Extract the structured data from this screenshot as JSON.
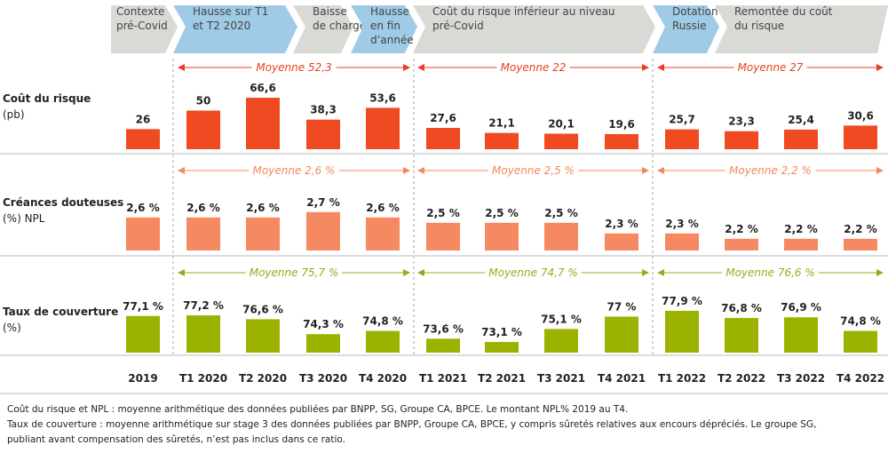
{
  "chart_data": {
    "type": "bar",
    "categories": [
      "2019",
      "T1 2020",
      "T2 2020",
      "T3 2020",
      "T4 2020",
      "T1 2021",
      "T2 2021",
      "T3 2021",
      "T4 2021",
      "T1 2022",
      "T2 2022",
      "T3 2022",
      "T4 2022"
    ],
    "phases": [
      {
        "label": [
          "Contexte",
          "pré-Covid"
        ],
        "color": "#d9d9d6"
      },
      {
        "label": [
          "Hausse sur T1",
          "et T2 2020"
        ],
        "color": "#9fcbe6"
      },
      {
        "label": [
          "Baisse",
          "de charge"
        ],
        "color": "#d9d9d6"
      },
      {
        "label": [
          "Hausse",
          "en fin",
          "d’année"
        ],
        "color": "#9fcbe6"
      },
      {
        "label": [
          "Coût du risque inférieur au niveau",
          "pré-Covid"
        ],
        "color": "#d9d9d6"
      },
      {
        "label": [
          "Dotation",
          "Russie"
        ],
        "color": "#9fcbe6"
      },
      {
        "label": [
          "Remontée du coût",
          "du risque"
        ],
        "color": "#d9d9d6"
      }
    ],
    "series": [
      {
        "name": "Coût du risque",
        "unit": "(pb)",
        "color": "#f04a23",
        "avg_color": "#e8401c",
        "values": [
          26,
          50,
          66.6,
          38.3,
          53.6,
          27.6,
          21.1,
          20.1,
          19.6,
          25.7,
          23.3,
          25.4,
          30.6
        ],
        "labels": [
          "26",
          "50",
          "66,6",
          "38,3",
          "53,6",
          "27,6",
          "21,1",
          "20,1",
          "19,6",
          "25,7",
          "23,3",
          "25,4",
          "30,6"
        ],
        "averages": [
          "Moyenne 52,3",
          "Moyenne 22",
          "Moyenne 27"
        ]
      },
      {
        "name": "Créances douteuses",
        "unit": "(%) NPL",
        "color": "#f58a62",
        "avg_color": "#f08a5e",
        "values": [
          2.6,
          2.6,
          2.6,
          2.7,
          2.6,
          2.5,
          2.5,
          2.5,
          2.3,
          2.3,
          2.2,
          2.2,
          2.2
        ],
        "labels": [
          "2,6 %",
          "2,6 %",
          "2,6 %",
          "2,7 %",
          "2,6 %",
          "2,5 %",
          "2,5 %",
          "2,5 %",
          "2,3 %",
          "2,3 %",
          "2,2 %",
          "2,2 %",
          "2,2 %"
        ],
        "averages": [
          "Moyenne 2,6 %",
          "Moyenne 2,5 %",
          "Moyenne 2,2 %"
        ]
      },
      {
        "name": "Taux de couverture",
        "unit": "(%)",
        "color": "#9bb300",
        "avg_color": "#8cb21a",
        "values": [
          77.1,
          77.2,
          76.6,
          74.3,
          74.8,
          73.6,
          73.1,
          75.1,
          77,
          77.9,
          76.8,
          76.9,
          74.8
        ],
        "labels": [
          "77,1 %",
          "77,2 %",
          "76,6 %",
          "74,3 %",
          "74,8 %",
          "73,6 %",
          "73,1 %",
          "75,1 %",
          "77 %",
          "77,9 %",
          "76,8 %",
          "76,9 %",
          "74,8 %"
        ],
        "averages": [
          "Moyenne 75,7 %",
          "Moyenne 74,7 %",
          "Moyenne 76,6 %"
        ]
      }
    ],
    "footnotes": [
      "Coût du risque et NPL : moyenne arithmétique des données publiées par BNPP, SG, Groupe CA, BPCE. Le montant NPL% 2019 au T4.",
      "Taux de couverture : moyenne arithmétique sur stage 3 des données publiées par BNPP, Groupe CA, BPCE, y compris sûretés relatives aux encours dépréciés. Le groupe SG,",
      "publiant avant compensation des sûretés, n’est pas inclus dans ce ratio."
    ]
  }
}
